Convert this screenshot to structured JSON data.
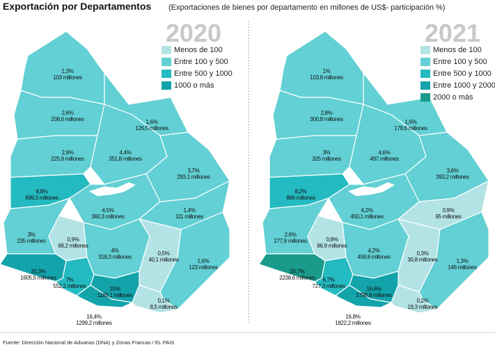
{
  "header": {
    "title": "Exportación por Departamentos",
    "subtitle": "(Exportaciones de bienes por departamento en millones de US$- participación %)"
  },
  "maps": [
    {
      "year": "2020",
      "legend": [
        {
          "label": "Menos de 100",
          "color": "#b4e3e6"
        },
        {
          "label": "Entre 100 y 500",
          "color": "#62d0d4"
        },
        {
          "label": "Entre 500 y 1000",
          "color": "#24bac1"
        },
        {
          "label": "1000 o más",
          "color": "#13a3ab"
        }
      ],
      "departments": [
        {
          "share": "1,3%",
          "amount": "103 millones",
          "color": "#62d0d4"
        },
        {
          "share": "2,6%",
          "amount": "208,6 millones",
          "color": "#62d0d4"
        },
        {
          "share": "1,6%",
          "amount": "126,5 millones",
          "color": "#62d0d4"
        },
        {
          "share": "2,9%",
          "amount": "225,9 millones",
          "color": "#62d0d4"
        },
        {
          "share": "4,4%",
          "amount": "351,8 millones",
          "color": "#62d0d4"
        },
        {
          "share": "3,7%",
          "amount": "293,1 millones",
          "color": "#62d0d4"
        },
        {
          "share": "8,8%",
          "amount": "699,3 millones",
          "color": "#24bac1"
        },
        {
          "share": "4,5%",
          "amount": "360,3 millones",
          "color": "#62d0d4"
        },
        {
          "share": "1,4%",
          "amount": "111 millones",
          "color": "#62d0d4"
        },
        {
          "share": "3%",
          "amount": "235 millones",
          "color": "#62d0d4"
        },
        {
          "share": "0,9%",
          "amount": "68,2 millones",
          "color": "#b4e3e6"
        },
        {
          "share": "4%",
          "amount": "318,3 millones",
          "color": "#62d0d4"
        },
        {
          "share": "0,5%",
          "amount": "40,1 millones",
          "color": "#b4e3e6"
        },
        {
          "share": "1,6%",
          "amount": "123 millones",
          "color": "#62d0d4"
        },
        {
          "share": "20,3%",
          "amount": "1605,5 millones",
          "color": "#13a3ab"
        },
        {
          "share": "7%",
          "amount": "552,2 millones",
          "color": "#24bac1"
        },
        {
          "share": "15%",
          "amount": "1189,1 millones",
          "color": "#13a3ab"
        },
        {
          "share": "0,1%",
          "amount": "8,5 millones",
          "color": "#b4e3e6"
        },
        {
          "share": "16,4%",
          "amount": "1299,2 millones",
          "color": "#13a3ab"
        }
      ]
    },
    {
      "year": "2021",
      "legend": [
        {
          "label": "Menos de 100",
          "color": "#b4e3e6"
        },
        {
          "label": "Entre 100 y 500",
          "color": "#62d0d4"
        },
        {
          "label": "Entre 500 y 1000",
          "color": "#24bac1"
        },
        {
          "label": "Entre 1000 y 2000",
          "color": "#13a3ab"
        },
        {
          "label": "2000 o más",
          "color": "#1a9a8a"
        }
      ],
      "departments": [
        {
          "share": "1%",
          "amount": "103,8 millones",
          "color": "#62d0d4"
        },
        {
          "share": "2,8%",
          "amount": "300,8 millones",
          "color": "#62d0d4"
        },
        {
          "share": "1,6%",
          "amount": "178,6 millones",
          "color": "#62d0d4"
        },
        {
          "share": "3%",
          "amount": "325 millones",
          "color": "#62d0d4"
        },
        {
          "share": "4,6%",
          "amount": "497 millones",
          "color": "#62d0d4"
        },
        {
          "share": "3,6%",
          "amount": "393,2 millones",
          "color": "#62d0d4"
        },
        {
          "share": "8,2%",
          "amount": "886 millones",
          "color": "#24bac1"
        },
        {
          "share": "4,2%",
          "amount": "450,1 millones",
          "color": "#62d0d4"
        },
        {
          "share": "0,9%",
          "amount": "95 millones",
          "color": "#b4e3e6"
        },
        {
          "share": "2,6%",
          "amount": "277,9 millones",
          "color": "#62d0d4"
        },
        {
          "share": "0,8%",
          "amount": "86,9 millones",
          "color": "#b4e3e6"
        },
        {
          "share": "4,2%",
          "amount": "458,6 millones",
          "color": "#62d0d4"
        },
        {
          "share": "0,3%",
          "amount": "30,8 millones",
          "color": "#b4e3e6"
        },
        {
          "share": "1,3%",
          "amount": "146 millones",
          "color": "#62d0d4"
        },
        {
          "share": "20,7%",
          "amount": "2238,6 millones",
          "color": "#1a9a8a"
        },
        {
          "share": "6,7%",
          "amount": "727,3 millones",
          "color": "#24bac1"
        },
        {
          "share": "16,6%",
          "amount": "1798,8 millones",
          "color": "#13a3ab"
        },
        {
          "share": "0,2%",
          "amount": "19,3 millones",
          "color": "#b4e3e6"
        },
        {
          "share": "16,8%",
          "amount": "1822,2 millones",
          "color": "#13a3ab"
        }
      ]
    }
  ],
  "source": "Fuente: Dirección Nacional de Aduanas (DNA) y Zonas Francas / EL PAIS"
}
